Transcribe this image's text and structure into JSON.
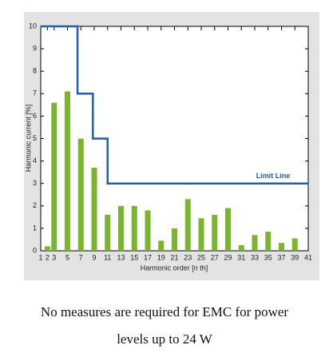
{
  "chart_data": {
    "type": "bar",
    "xlabel": "Harmonic order [n th]",
    "ylabel": "Harmonic current [%]",
    "x": [
      2,
      3,
      5,
      7,
      9,
      11,
      13,
      15,
      17,
      19,
      21,
      23,
      25,
      27,
      29,
      31,
      33,
      35,
      37,
      39
    ],
    "values": [
      0.2,
      6.6,
      7.1,
      5.0,
      3.7,
      1.6,
      2.0,
      2.0,
      1.8,
      0.45,
      1.0,
      2.3,
      1.45,
      1.6,
      1.9,
      0.25,
      0.7,
      0.85,
      0.35,
      0.55
    ],
    "color": "#7ab52e",
    "limit_line": {
      "name": "Limit Line",
      "color": "#1f5fae",
      "x": [
        1,
        6.5,
        6.5,
        8.8,
        8.8,
        11,
        11,
        41
      ],
      "values": [
        10,
        10,
        7,
        7,
        5,
        5,
        3,
        3
      ]
    },
    "xlim": [
      1,
      41
    ],
    "ylim": [
      0,
      10
    ],
    "xticks": [
      1,
      2,
      3,
      5,
      7,
      9,
      11,
      13,
      15,
      17,
      19,
      21,
      23,
      25,
      27,
      29,
      31,
      33,
      35,
      37,
      39,
      41
    ],
    "yticks": [
      0,
      1,
      2,
      3,
      4,
      5,
      6,
      7,
      8,
      9,
      10
    ]
  },
  "caption": "No measures are required for EMC for power levels up to 24 W"
}
